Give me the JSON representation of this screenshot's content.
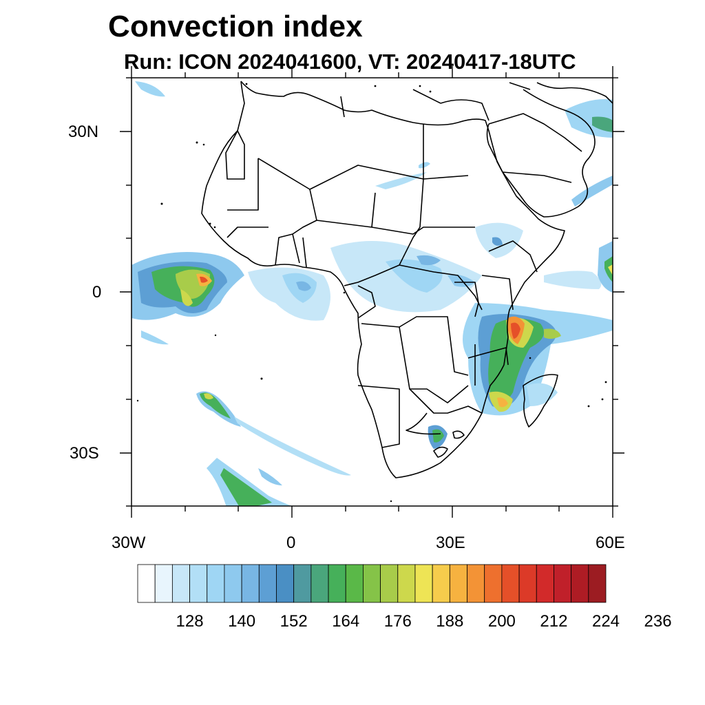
{
  "header": {
    "title": "Convection index",
    "subtitle": "Run: ICON 2024041600,  VT: 20240417-18UTC"
  },
  "axes": {
    "y_ticks": [
      "30N",
      "0",
      "30S"
    ],
    "x_ticks": [
      "30W",
      "0",
      "30E",
      "60E"
    ]
  },
  "colorbar": {
    "colors": [
      "#ffffff",
      "#e8f5fd",
      "#c7e7f8",
      "#b2dff6",
      "#9fd6f4",
      "#8ec9ee",
      "#78b6e4",
      "#5d9fd4",
      "#4a8fc4",
      "#4f9aa0",
      "#4aa67c",
      "#46b05a",
      "#5ab848",
      "#85c348",
      "#a8cc4a",
      "#cdd84c",
      "#eee455",
      "#f6cc4c",
      "#f6b240",
      "#f39336",
      "#ee702e",
      "#e55029",
      "#dc3a28",
      "#d22a2a",
      "#c0202a",
      "#ae1c24",
      "#9c1c22"
    ],
    "labels": [
      "128",
      "140",
      "152",
      "164",
      "176",
      "188",
      "200",
      "212",
      "224",
      "236"
    ]
  }
}
